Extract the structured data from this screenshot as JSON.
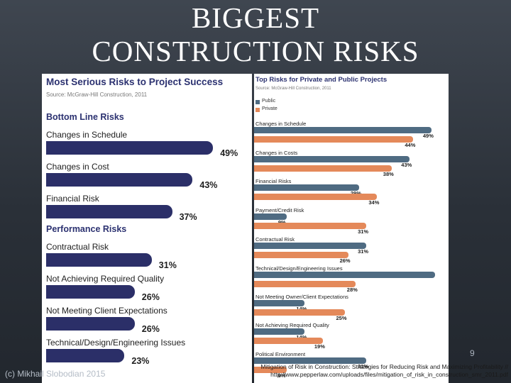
{
  "slide": {
    "title_line1": "BIGGEST",
    "title_line2": "CONSTRUCTION RISKS",
    "slide_number": "9",
    "copyright": "(c) Mikhail Slobodian 2015",
    "citation_line1": "Mitigation of Risk in Construction: Strategies for Reducing Risk and Maximizing Profitability //",
    "citation_line2": "http://www.pepperlaw.com/uploads/files/mitigation_of_risk_in_construction_smr_2011.pdf"
  },
  "chart_data": [
    {
      "type": "bar",
      "title": "Most Serious Risks to Project Success",
      "source": "Source: McGraw-Hill Construction, 2011",
      "groups": [
        {
          "name": "Bottom Line Risks",
          "categories": [
            "Changes in Schedule",
            "Changes in Cost",
            "Financial Risk"
          ],
          "values": [
            49,
            43,
            37
          ],
          "labels": [
            "49%",
            "43%",
            "37%"
          ]
        },
        {
          "name": "Performance Risks",
          "categories": [
            "Contractual Risk",
            "Not Achieving Required Quality",
            "Not Meeting Client Expectations",
            "Technical/Design/Engineering Issues"
          ],
          "values": [
            31,
            26,
            26,
            23
          ],
          "labels": [
            "31%",
            "26%",
            "26%",
            "23%"
          ]
        }
      ],
      "xlim": [
        0,
        50
      ],
      "colors": {
        "bar": "#2b2f68"
      }
    },
    {
      "type": "bar",
      "title": "Top Risks for Private and Public Projects",
      "source": "Source: McGraw-Hill Construction, 2011",
      "legend": "top-left",
      "categories": [
        "Changes in Schedule",
        "Changes in Costs",
        "Financial Risks",
        "Payment/Credit Risk",
        "Contractual Risk",
        "Technical/Design/Engineering Issues",
        "Not Meeting Owner/Client Expectations",
        "Not Achieving Required Quality",
        "Political Environment"
      ],
      "series": [
        {
          "name": "Public",
          "color": "#4f6b82",
          "values": [
            49,
            43,
            29,
            9,
            31,
            50,
            14,
            14,
            31
          ],
          "labels": [
            "49%",
            "43%",
            "29%",
            "9%",
            "31%",
            "",
            "14%",
            "14%",
            "31%"
          ]
        },
        {
          "name": "Private",
          "color": "#e4895a",
          "values": [
            44,
            38,
            34,
            31,
            26,
            28,
            25,
            19,
            9
          ],
          "labels": [
            "44%",
            "38%",
            "34%",
            "31%",
            "26%",
            "28%",
            "25%",
            "19%",
            "9%"
          ]
        }
      ],
      "xlim": [
        0,
        50
      ]
    }
  ]
}
